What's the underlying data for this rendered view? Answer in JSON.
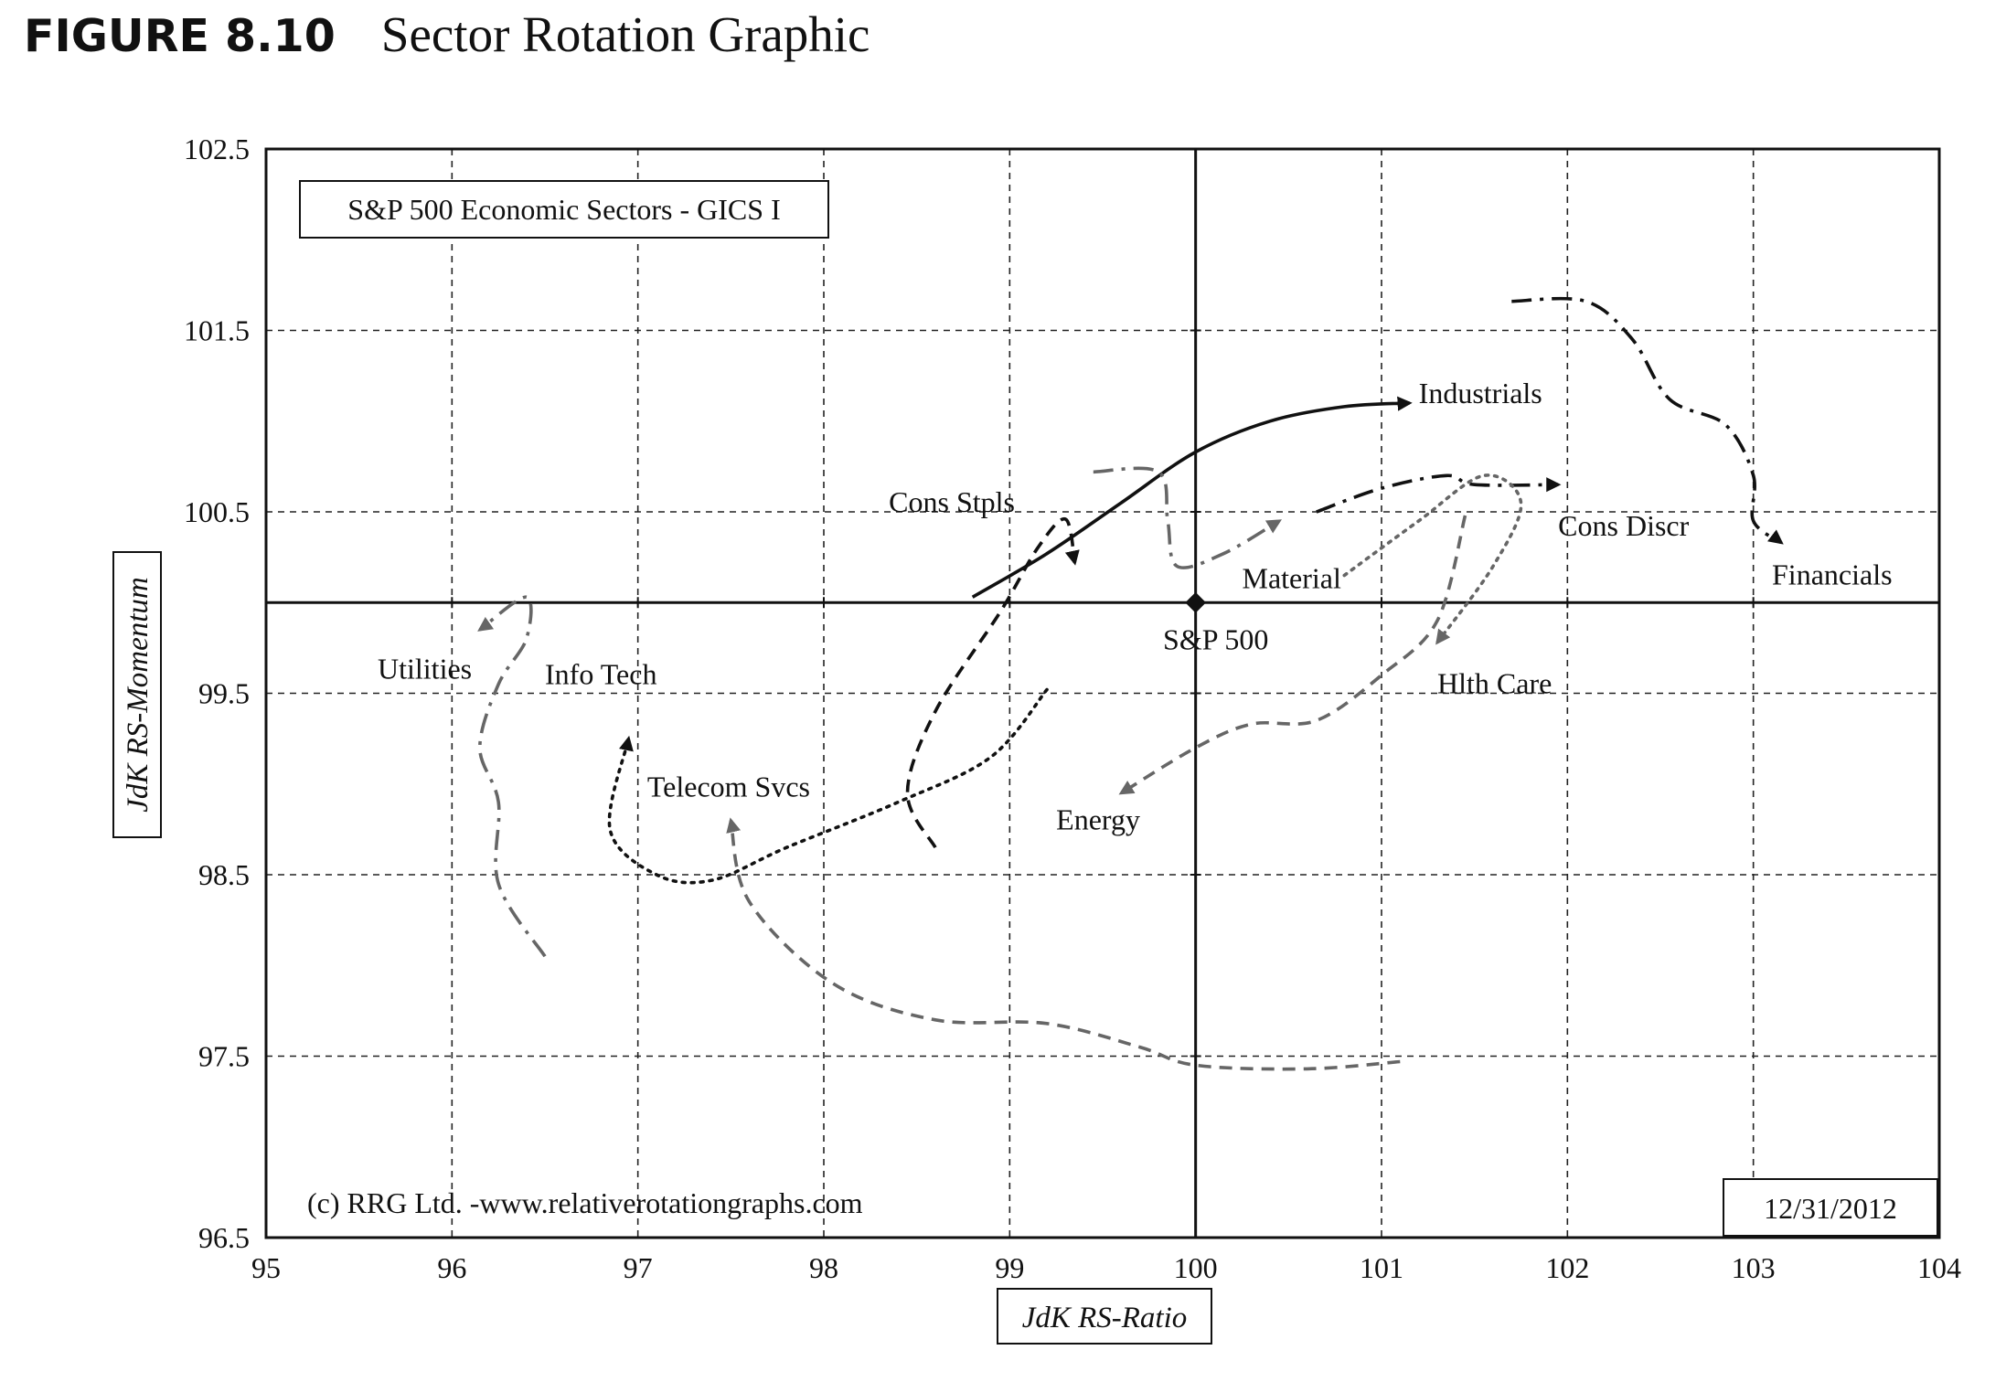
{
  "figure": {
    "label": "FIGURE 8.10",
    "title": "Sector Rotation Graphic"
  },
  "chart_data": {
    "type": "line",
    "subtype": "relative-rotation-graph",
    "xlabel": "JdK RS-Ratio",
    "ylabel": "JdK RS-Momentum",
    "xlim": [
      95,
      104
    ],
    "ylim": [
      96.5,
      102.5
    ],
    "xticks": [
      95,
      96,
      97,
      98,
      99,
      100,
      101,
      102,
      103,
      104
    ],
    "yticks": [
      96.5,
      97.5,
      98.5,
      99.5,
      100.5,
      101.5,
      102.5
    ],
    "grid": true,
    "center": {
      "x": 100,
      "y": 100,
      "label": "S&P 500"
    },
    "legend_box": "S&P 500 Economic Sectors - GICS I",
    "date_box": "12/31/2012",
    "credit": "(c) RRG Ltd. -www.relativerotationgraphs.com",
    "series": [
      {
        "name": "Industrials",
        "color": "#111111",
        "dash": "solid",
        "points": [
          [
            98.8,
            100.03
          ],
          [
            99.2,
            100.27
          ],
          [
            99.6,
            100.55
          ],
          [
            100,
            100.83
          ],
          [
            100.4,
            101.0
          ],
          [
            100.8,
            101.08
          ],
          [
            101.15,
            101.1
          ]
        ]
      },
      {
        "name": "Cons Discr",
        "color": "#111111",
        "dash": "dashdot",
        "points": [
          [
            100.65,
            100.5
          ],
          [
            101.0,
            100.63
          ],
          [
            101.35,
            100.7
          ],
          [
            101.5,
            100.65
          ],
          [
            101.95,
            100.65
          ]
        ]
      },
      {
        "name": "Financials",
        "color": "#111111",
        "dash": "dashdot",
        "points": [
          [
            101.7,
            101.66
          ],
          [
            102.1,
            101.66
          ],
          [
            102.35,
            101.45
          ],
          [
            102.55,
            101.12
          ],
          [
            102.85,
            100.98
          ],
          [
            103.0,
            100.7
          ],
          [
            103.0,
            100.45
          ],
          [
            103.15,
            100.33
          ]
        ]
      },
      {
        "name": "Cons Stpls",
        "color": "#111111",
        "dash": "dash",
        "points": [
          [
            98.6,
            98.65
          ],
          [
            98.45,
            98.95
          ],
          [
            98.6,
            99.4
          ],
          [
            98.95,
            99.95
          ],
          [
            99.15,
            100.3
          ],
          [
            99.3,
            100.46
          ],
          [
            99.35,
            100.22
          ]
        ]
      },
      {
        "name": "Info Tech",
        "color": "#111111",
        "dash": "dot",
        "points": [
          [
            99.2,
            99.52
          ],
          [
            98.9,
            99.15
          ],
          [
            98.4,
            98.9
          ],
          [
            97.8,
            98.65
          ],
          [
            97.4,
            98.47
          ],
          [
            97.1,
            98.5
          ],
          [
            96.85,
            98.75
          ],
          [
            96.95,
            99.25
          ]
        ]
      },
      {
        "name": "Utilities",
        "color": "#666666",
        "dash": "dashdot",
        "points": [
          [
            96.5,
            98.05
          ],
          [
            96.25,
            98.45
          ],
          [
            96.25,
            98.9
          ],
          [
            96.15,
            99.2
          ],
          [
            96.25,
            99.55
          ],
          [
            96.4,
            99.8
          ],
          [
            96.4,
            100.03
          ],
          [
            96.15,
            99.85
          ]
        ]
      },
      {
        "name": "Telecom Svcs",
        "color": "#666666",
        "dash": "dash",
        "points": [
          [
            101.1,
            97.47
          ],
          [
            100.6,
            97.43
          ],
          [
            100.0,
            97.45
          ],
          [
            99.7,
            97.55
          ],
          [
            99.2,
            97.68
          ],
          [
            98.6,
            97.7
          ],
          [
            98.05,
            97.9
          ],
          [
            97.6,
            98.35
          ],
          [
            97.5,
            98.8
          ]
        ]
      },
      {
        "name": "Energy",
        "color": "#666666",
        "dash": "dash",
        "points": [
          [
            101.45,
            100.48
          ],
          [
            101.3,
            99.9
          ],
          [
            101.0,
            99.6
          ],
          [
            100.65,
            99.35
          ],
          [
            100.3,
            99.33
          ],
          [
            100.0,
            99.2
          ],
          [
            99.6,
            98.95
          ]
        ]
      },
      {
        "name": "Hlth Care",
        "color": "#666666",
        "dash": "dot",
        "points": [
          [
            100.8,
            100.15
          ],
          [
            101.2,
            100.45
          ],
          [
            101.55,
            100.7
          ],
          [
            101.75,
            100.55
          ],
          [
            101.6,
            100.2
          ],
          [
            101.3,
            99.78
          ]
        ]
      },
      {
        "name": "Material",
        "color": "#666666",
        "dash": "dashdot",
        "points": [
          [
            99.45,
            100.72
          ],
          [
            99.8,
            100.72
          ],
          [
            99.85,
            100.45
          ],
          [
            99.9,
            100.2
          ],
          [
            100.15,
            100.27
          ],
          [
            100.45,
            100.45
          ]
        ]
      }
    ],
    "labels": [
      {
        "text": "Industrials",
        "x": 101.2,
        "y": 101.1
      },
      {
        "text": "Cons Discr",
        "x": 101.95,
        "y": 100.37
      },
      {
        "text": "Financials",
        "x": 103.1,
        "y": 100.1
      },
      {
        "text": "Cons Stpls",
        "x": 98.35,
        "y": 100.5
      },
      {
        "text": "Material",
        "x": 100.25,
        "y": 100.08
      },
      {
        "text": "Hlth Care",
        "x": 101.3,
        "y": 99.5
      },
      {
        "text": "Utilities",
        "x": 95.6,
        "y": 99.58
      },
      {
        "text": "Info Tech",
        "x": 96.5,
        "y": 99.55
      },
      {
        "text": "Telecom Svcs",
        "x": 97.05,
        "y": 98.93
      },
      {
        "text": "Energy",
        "x": 99.25,
        "y": 98.75
      }
    ]
  }
}
